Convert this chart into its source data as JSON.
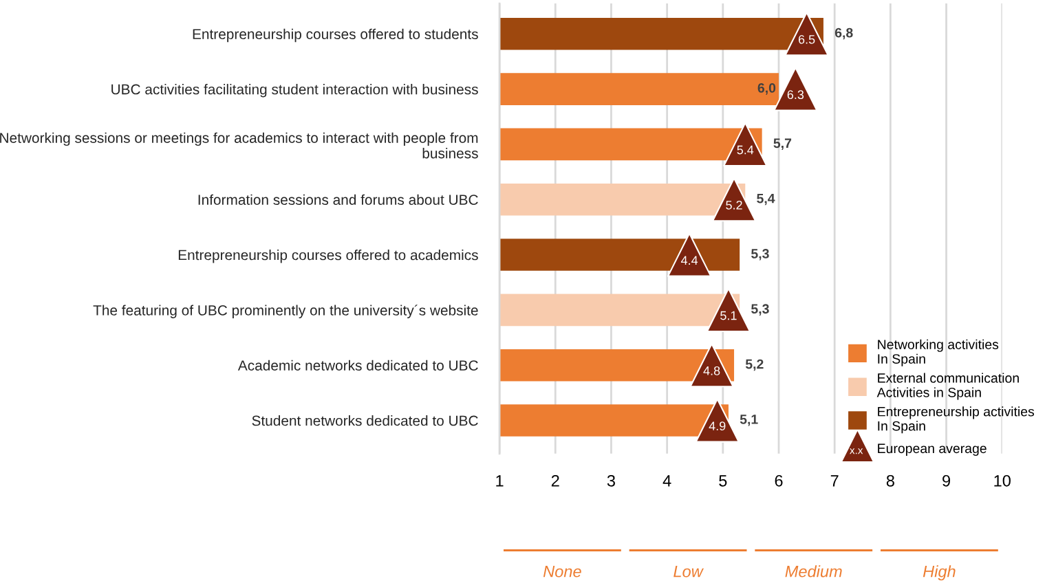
{
  "chart_data": {
    "type": "bar",
    "orientation": "horizontal",
    "categories": [
      "Entrepreneurship courses offered to students",
      "UBC activities facilitating student interaction with business",
      "Networking sessions or meetings for academics to interact with people from business",
      "Information sessions and forums about UBC",
      "Entrepreneurship courses offered to academics",
      "The featuring of UBC prominently on the university´s website",
      "Academic networks dedicated to UBC",
      "Student networks dedicated to UBC"
    ],
    "series": [
      {
        "name": "Networking activities In Spain",
        "color": "#ed7d31",
        "values": [
          null,
          6.0,
          5.7,
          null,
          null,
          null,
          5.2,
          5.1
        ],
        "value_labels": [
          null,
          "6,0",
          "5,7",
          null,
          null,
          null,
          "5,2",
          "5,1"
        ]
      },
      {
        "name": "External communication Activities in Spain",
        "color": "#f8cbad",
        "values": [
          null,
          null,
          null,
          5.4,
          null,
          5.3,
          null,
          null
        ],
        "value_labels": [
          null,
          null,
          null,
          "5,4",
          null,
          "5,3",
          null,
          null
        ]
      },
      {
        "name": "Entrepreneurship activities In Spain",
        "color": "#9e480e",
        "values": [
          6.8,
          null,
          null,
          null,
          5.3,
          null,
          null,
          null
        ],
        "value_labels": [
          "6,8",
          null,
          null,
          null,
          "5,3",
          null,
          null,
          null
        ]
      },
      {
        "name": "European average",
        "type": "scatter",
        "marker": "triangle",
        "color": "#7b2410",
        "values": [
          6.5,
          6.3,
          5.4,
          5.2,
          4.4,
          5.1,
          4.8,
          4.9
        ],
        "data_labels": true
      }
    ],
    "annotations": [
      "x.x",
      "None",
      "Low",
      "Medium",
      "High"
    ],
    "xlim": [
      1,
      10
    ],
    "xticks": [
      1,
      2,
      3,
      4,
      5,
      6,
      7,
      8,
      9,
      10
    ],
    "grid": "x",
    "legend": "bottom right"
  }
}
